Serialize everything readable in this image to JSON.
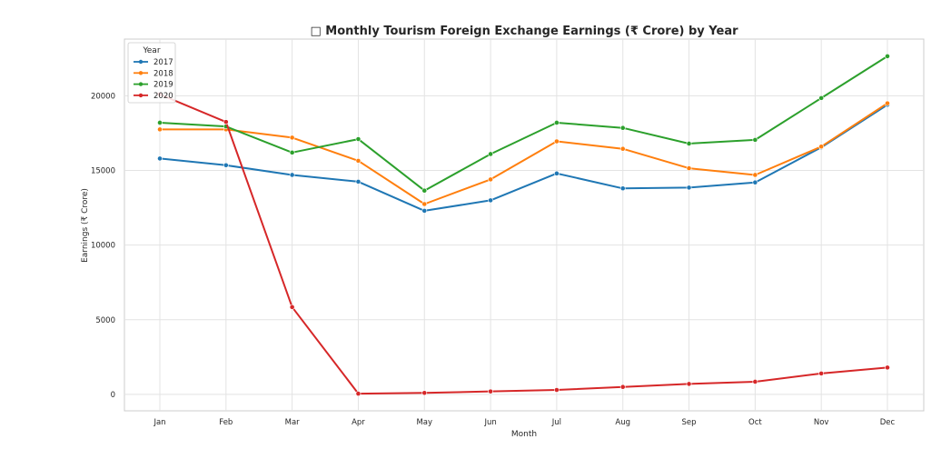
{
  "chart_data": {
    "type": "line",
    "title": "□ Monthly Tourism Foreign Exchange Earnings (₹ Crore) by Year",
    "xlabel": "Month",
    "ylabel": "Earnings (₹ Crore)",
    "categories": [
      "Jan",
      "Feb",
      "Mar",
      "Apr",
      "May",
      "Jun",
      "Jul",
      "Aug",
      "Sep",
      "Oct",
      "Nov",
      "Dec"
    ],
    "ylim": [
      -1100,
      23800
    ],
    "yticks": [
      0,
      5000,
      10000,
      15000,
      20000
    ],
    "grid": true,
    "legend": {
      "title": "Year",
      "position": "top-left"
    },
    "series": [
      {
        "name": "2017",
        "color": "#1f77b4",
        "values": [
          15800,
          15350,
          14700,
          14250,
          12300,
          13000,
          14800,
          13800,
          13850,
          14200,
          16550,
          19400
        ]
      },
      {
        "name": "2018",
        "color": "#ff7f0e",
        "values": [
          17750,
          17750,
          17200,
          15650,
          12750,
          14400,
          16950,
          16450,
          15150,
          14700,
          16600,
          19500
        ]
      },
      {
        "name": "2019",
        "color": "#2ca02c",
        "values": [
          18200,
          17950,
          16200,
          17100,
          13650,
          16100,
          18200,
          17850,
          16800,
          17050,
          19850,
          22650
        ]
      },
      {
        "name": "2020",
        "color": "#d62728",
        "values": [
          20100,
          18250,
          5850,
          50,
          100,
          200,
          300,
          500,
          700,
          850,
          1400,
          1800
        ]
      }
    ]
  }
}
